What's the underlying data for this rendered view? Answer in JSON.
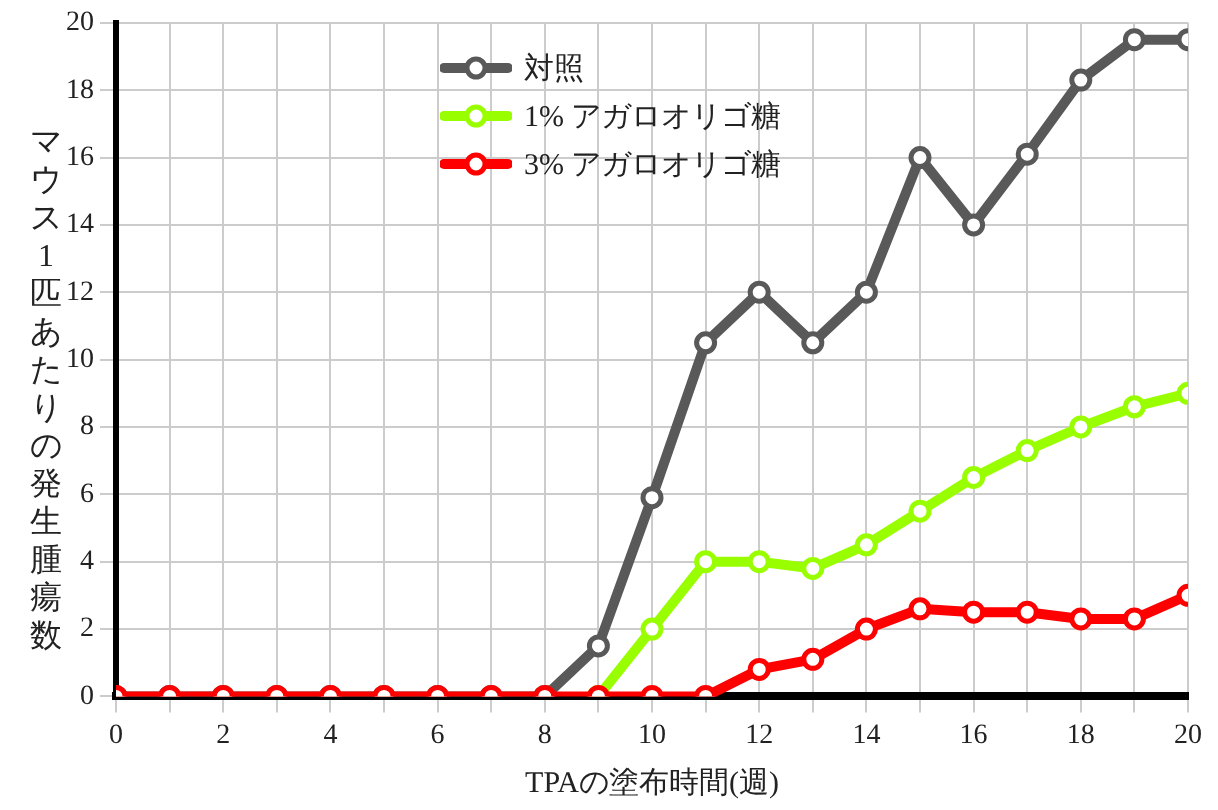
{
  "chart_data": {
    "type": "line",
    "xlabel": "TPAの塗布時間(週)",
    "ylabel": "マウス1匹あたりの発生腫瘍数",
    "x": [
      0,
      1,
      2,
      3,
      4,
      5,
      6,
      7,
      8,
      9,
      10,
      11,
      12,
      13,
      14,
      15,
      16,
      17,
      18,
      19,
      20
    ],
    "series": [
      {
        "name": "対照",
        "color": "#595959",
        "values": [
          0,
          0,
          0,
          0,
          0,
          0,
          0,
          0,
          0,
          1.5,
          5.9,
          10.5,
          12,
          10.5,
          12,
          16,
          14,
          16.1,
          18.3,
          19.5,
          19.5
        ]
      },
      {
        "name": "1% アガロオリゴ糖",
        "color": "#99ff00",
        "values": [
          null,
          null,
          null,
          null,
          null,
          null,
          null,
          null,
          null,
          0,
          2,
          4,
          4,
          3.8,
          4.5,
          5.5,
          6.5,
          7.3,
          8,
          8.6,
          9
        ]
      },
      {
        "name": "3% アガロオリゴ糖",
        "color": "#ff0000",
        "values": [
          0,
          0,
          0,
          0,
          0,
          0,
          0,
          0,
          0,
          0,
          0,
          0,
          0.8,
          1.1,
          2,
          2.6,
          2.5,
          2.5,
          2.3,
          2.3,
          3
        ]
      }
    ],
    "xlim": [
      0,
      20
    ],
    "xticks": [
      0,
      {
        "value": 1,
        "label": null
      },
      2,
      {
        "value": 3,
        "label": null
      },
      4,
      {
        "value": 5,
        "label": null
      },
      6,
      {
        "value": 7,
        "label": null
      },
      8,
      {
        "value": 9,
        "label": null
      },
      10,
      {
        "value": 11,
        "label": null
      },
      12,
      {
        "value": 13,
        "label": null
      },
      14,
      {
        "value": 15,
        "label": null
      },
      16,
      {
        "value": 17,
        "label": null
      },
      18,
      {
        "value": 19,
        "label": null
      },
      20
    ],
    "ylim": [
      0,
      20
    ],
    "yticks": [
      0,
      2,
      4,
      6,
      8,
      10,
      12,
      14,
      16,
      18,
      20
    ],
    "grid": true,
    "legend": "top left",
    "marker": "circle",
    "line_style": "solid"
  }
}
